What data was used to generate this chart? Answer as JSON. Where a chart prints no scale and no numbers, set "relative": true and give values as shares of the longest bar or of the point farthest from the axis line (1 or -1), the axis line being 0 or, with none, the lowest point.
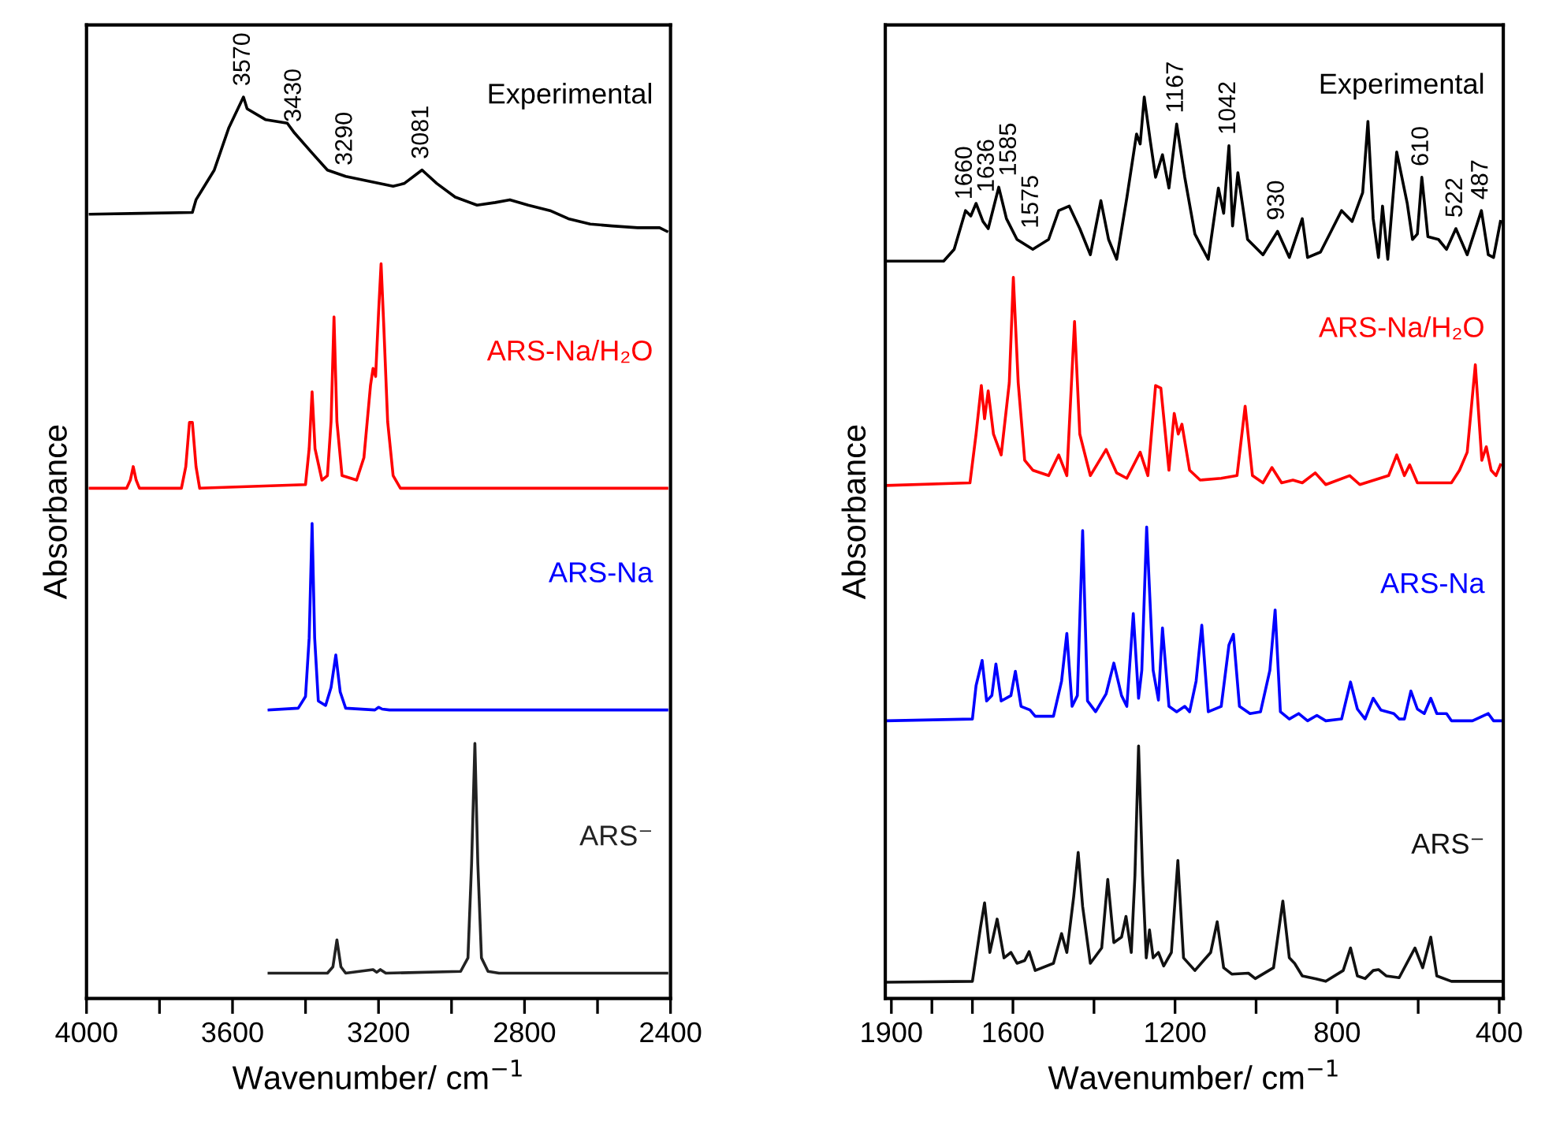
{
  "chart_data": [
    {
      "type": "line",
      "relative": true,
      "xlabel": "Wavenumber/ cm$^{−1}$",
      "ylabel": "Absorbance",
      "xlim": [
        4000,
        2400
      ],
      "xticks": [
        4000,
        {
          "value": 3800,
          "label": null
        },
        3600,
        {
          "value": 3400,
          "label": null
        },
        3200,
        {
          "value": 3000,
          "label": null
        },
        2800,
        {
          "value": 2600,
          "label": null
        },
        2400
      ],
      "tick_labels": "x",
      "grid": false,
      "legend": false,
      "marker": "none",
      "line_style": "solid",
      "annotations": [
        {
          "text": "3570",
          "x": 3570,
          "y": 1.0
        },
        {
          "text": "3430",
          "x": 3430,
          "y": 0.96
        },
        {
          "text": "3290",
          "x": 3290,
          "y": 0.912
        },
        {
          "text": "3081",
          "x": 3081,
          "y": 0.919
        }
      ],
      "series": [
        {
          "name": "Experimental",
          "color": "#000000",
          "x": [
            3990,
            3850,
            3710,
            3700,
            3650,
            3610,
            3570,
            3560,
            3510,
            3450,
            3430,
            3380,
            3340,
            3290,
            3220,
            3160,
            3130,
            3081,
            3070,
            3040,
            2990,
            2930,
            2880,
            2840,
            2790,
            2730,
            2680,
            2620,
            2560,
            2490,
            2430,
            2410
          ],
          "values": [
            0.87,
            0.871,
            0.872,
            0.886,
            0.919,
            0.966,
            1.0,
            0.987,
            0.975,
            0.971,
            0.96,
            0.937,
            0.919,
            0.912,
            0.906,
            0.901,
            0.904,
            0.919,
            0.915,
            0.904,
            0.889,
            0.88,
            0.883,
            0.886,
            0.88,
            0.874,
            0.865,
            0.859,
            0.857,
            0.855,
            0.855,
            0.851
          ]
        },
        {
          "name": "ARS-Na/H₂O",
          "color": "#ff0000",
          "x": [
            3990,
            3890,
            3880,
            3872,
            3864,
            3855,
            3740,
            3728,
            3718,
            3710,
            3700,
            3690,
            3400,
            3390,
            3382,
            3374,
            3355,
            3340,
            3330,
            3322,
            3314,
            3300,
            3260,
            3240,
            3222,
            3215,
            3208,
            3200,
            3193,
            3186,
            3175,
            3160,
            3140,
            2410
          ],
          "values": [
            0.566,
            0.566,
            0.575,
            0.59,
            0.575,
            0.566,
            0.566,
            0.59,
            0.639,
            0.639,
            0.59,
            0.566,
            0.57,
            0.61,
            0.673,
            0.61,
            0.575,
            0.58,
            0.64,
            0.756,
            0.64,
            0.58,
            0.575,
            0.6,
            0.68,
            0.699,
            0.69,
            0.76,
            0.815,
            0.75,
            0.64,
            0.58,
            0.566,
            0.566
          ]
        },
        {
          "name": "ARS-Na",
          "color": "#0000ff",
          "x": [
            3500,
            3420,
            3400,
            3390,
            3382,
            3375,
            3365,
            3345,
            3330,
            3317,
            3305,
            3290,
            3210,
            3200,
            3190,
            3170,
            2410
          ],
          "values": [
            0.32,
            0.322,
            0.335,
            0.4,
            0.527,
            0.4,
            0.33,
            0.325,
            0.345,
            0.381,
            0.34,
            0.322,
            0.32,
            0.323,
            0.321,
            0.32,
            0.32
          ]
        },
        {
          "name": "ARS⁻",
          "color": "#222222",
          "x": [
            3500,
            3340,
            3325,
            3314,
            3303,
            3290,
            3215,
            3205,
            3195,
            3180,
            2975,
            2955,
            2945,
            2936,
            2928,
            2918,
            2900,
            2870,
            2410
          ],
          "values": [
            0.028,
            0.028,
            0.035,
            0.065,
            0.035,
            0.028,
            0.032,
            0.029,
            0.032,
            0.028,
            0.03,
            0.045,
            0.15,
            0.283,
            0.15,
            0.045,
            0.03,
            0.028,
            0.028
          ]
        }
      ]
    },
    {
      "type": "line",
      "relative": true,
      "xlabel": "Wavenumber/ cm$^{−1}$",
      "ylabel": "Absorbance",
      "xlim": [
        1915,
        390
      ],
      "xticks": [
        1900,
        {
          "value": 1800,
          "label": null
        },
        {
          "value": 1700,
          "label": null
        },
        1600,
        {
          "value": 1400,
          "label": null
        },
        1200,
        {
          "value": 1000,
          "label": null
        },
        800,
        {
          "value": 600,
          "label": null
        },
        400
      ],
      "tick_labels": "x",
      "grid": false,
      "legend": false,
      "marker": "none",
      "line_style": "solid",
      "annotations": [
        {
          "text": "1660",
          "x": 1717,
          "y": 0.874
        },
        {
          "text": "1636",
          "x": 1691,
          "y": 0.882
        },
        {
          "text": "1585",
          "x": 1635,
          "y": 0.9
        },
        {
          "text": "1575",
          "x": 1590,
          "y": 0.842
        },
        {
          "text": "1167",
          "x": 1196,
          "y": 0.97
        },
        {
          "text": "1042",
          "x": 1067,
          "y": 0.946
        },
        {
          "text": "930",
          "x": 947,
          "y": 0.851
        },
        {
          "text": "610",
          "x": 591,
          "y": 0.911
        },
        {
          "text": "522",
          "x": 507,
          "y": 0.854
        },
        {
          "text": "487",
          "x": 444,
          "y": 0.874
        }
      ],
      "series": [
        {
          "name": "Experimental",
          "color": "#000000",
          "x": [
            1913,
            1771,
            1745,
            1717,
            1704,
            1691,
            1674,
            1661,
            1635,
            1616,
            1590,
            1551,
            1512,
            1487,
            1461,
            1435,
            1409,
            1383,
            1364,
            1344,
            1319,
            1295,
            1286,
            1276,
            1261,
            1248,
            1231,
            1215,
            1196,
            1176,
            1151,
            1118,
            1093,
            1080,
            1067,
            1058,
            1045,
            1021,
            983,
            947,
            918,
            886,
            873,
            841,
            815,
            789,
            763,
            737,
            724,
            711,
            698,
            688,
            675,
            653,
            627,
            614,
            602,
            591,
            576,
            550,
            530,
            507,
            479,
            444,
            427,
            414,
            397
          ],
          "values": [
            0.818,
            0.818,
            0.831,
            0.874,
            0.868,
            0.882,
            0.862,
            0.854,
            0.9,
            0.865,
            0.842,
            0.831,
            0.842,
            0.874,
            0.879,
            0.854,
            0.825,
            0.885,
            0.842,
            0.82,
            0.888,
            0.959,
            0.948,
            1.0,
            0.951,
            0.911,
            0.936,
            0.899,
            0.97,
            0.911,
            0.848,
            0.82,
            0.899,
            0.871,
            0.946,
            0.857,
            0.916,
            0.842,
            0.825,
            0.851,
            0.822,
            0.865,
            0.822,
            0.828,
            0.851,
            0.874,
            0.862,
            0.894,
            0.973,
            0.865,
            0.822,
            0.879,
            0.82,
            0.939,
            0.882,
            0.842,
            0.848,
            0.911,
            0.845,
            0.842,
            0.831,
            0.854,
            0.825,
            0.874,
            0.825,
            0.822,
            0.862
          ]
        },
        {
          "name": "ARS-Na/H₂O",
          "color": "#ff0000",
          "x": [
            1913,
            1706,
            1691,
            1678,
            1670,
            1661,
            1648,
            1629,
            1609,
            1599,
            1587,
            1571,
            1551,
            1512,
            1487,
            1467,
            1448,
            1435,
            1409,
            1370,
            1344,
            1319,
            1286,
            1267,
            1248,
            1235,
            1215,
            1202,
            1192,
            1183,
            1164,
            1138,
            1086,
            1047,
            1027,
            1009,
            983,
            961,
            937,
            909,
            886,
            854,
            828,
            769,
            744,
            673,
            653,
            634,
            621,
            602,
            518,
            498,
            479,
            459,
            443,
            432,
            420,
            408,
            397
          ],
          "values": [
            0.569,
            0.572,
            0.626,
            0.68,
            0.643,
            0.674,
            0.626,
            0.603,
            0.683,
            0.8,
            0.683,
            0.597,
            0.586,
            0.58,
            0.603,
            0.58,
            0.751,
            0.626,
            0.58,
            0.609,
            0.583,
            0.577,
            0.606,
            0.58,
            0.68,
            0.677,
            0.586,
            0.649,
            0.626,
            0.637,
            0.586,
            0.575,
            0.577,
            0.58,
            0.657,
            0.58,
            0.572,
            0.589,
            0.572,
            0.575,
            0.572,
            0.583,
            0.57,
            0.58,
            0.57,
            0.58,
            0.603,
            0.58,
            0.592,
            0.572,
            0.572,
            0.586,
            0.606,
            0.703,
            0.597,
            0.612,
            0.586,
            0.58,
            0.592
          ]
        },
        {
          "name": "ARS-Na",
          "color": "#0000ff",
          "x": [
            1913,
            1700,
            1691,
            1676,
            1665,
            1652,
            1642,
            1629,
            1605,
            1594,
            1580,
            1558,
            1545,
            1500,
            1480,
            1467,
            1454,
            1441,
            1428,
            1416,
            1396,
            1370,
            1351,
            1332,
            1319,
            1303,
            1290,
            1282,
            1270,
            1254,
            1241,
            1231,
            1215,
            1196,
            1176,
            1164,
            1148,
            1134,
            1118,
            1086,
            1067,
            1056,
            1041,
            1015,
            989,
            966,
            953,
            940,
            918,
            895,
            873,
            850,
            828,
            789,
            767,
            750,
            731,
            711,
            692,
            660,
            647,
            634,
            618,
            602,
            585,
            569,
            554,
            530,
            518,
            466,
            427,
            414,
            397
          ],
          "values": [
            0.308,
            0.31,
            0.347,
            0.375,
            0.33,
            0.336,
            0.371,
            0.33,
            0.336,
            0.363,
            0.324,
            0.32,
            0.313,
            0.313,
            0.352,
            0.405,
            0.324,
            0.336,
            0.519,
            0.33,
            0.318,
            0.338,
            0.372,
            0.336,
            0.324,
            0.427,
            0.333,
            0.364,
            0.523,
            0.364,
            0.331,
            0.411,
            0.324,
            0.318,
            0.324,
            0.318,
            0.352,
            0.414,
            0.318,
            0.324,
            0.392,
            0.404,
            0.324,
            0.316,
            0.318,
            0.364,
            0.431,
            0.318,
            0.31,
            0.316,
            0.308,
            0.314,
            0.308,
            0.31,
            0.351,
            0.321,
            0.31,
            0.333,
            0.32,
            0.316,
            0.31,
            0.31,
            0.341,
            0.321,
            0.316,
            0.333,
            0.316,
            0.316,
            0.308,
            0.308,
            0.316,
            0.308,
            0.308
          ]
        },
        {
          "name": "ARS⁻",
          "color": "#111111",
          "x": [
            1913,
            1700,
            1680,
            1670,
            1657,
            1639,
            1622,
            1605,
            1590,
            1571,
            1560,
            1545,
            1500,
            1480,
            1467,
            1450,
            1439,
            1428,
            1409,
            1381,
            1366,
            1351,
            1332,
            1321,
            1308,
            1299,
            1290,
            1280,
            1271,
            1263,
            1254,
            1241,
            1228,
            1209,
            1193,
            1179,
            1151,
            1112,
            1096,
            1080,
            1060,
            1019,
            1002,
            957,
            934,
            918,
            905,
            886,
            854,
            828,
            785,
            767,
            750,
            731,
            711,
            698,
            679,
            647,
            621,
            608,
            589,
            569,
            554,
            518,
            466,
            397
          ],
          "values": [
            0.018,
            0.019,
            0.079,
            0.106,
            0.051,
            0.088,
            0.045,
            0.051,
            0.039,
            0.042,
            0.052,
            0.031,
            0.039,
            0.072,
            0.051,
            0.113,
            0.162,
            0.102,
            0.039,
            0.056,
            0.132,
            0.062,
            0.068,
            0.091,
            0.051,
            0.136,
            0.28,
            0.136,
            0.045,
            0.076,
            0.045,
            0.051,
            0.036,
            0.051,
            0.153,
            0.045,
            0.031,
            0.051,
            0.085,
            0.034,
            0.027,
            0.028,
            0.022,
            0.034,
            0.108,
            0.045,
            0.039,
            0.025,
            0.022,
            0.019,
            0.031,
            0.056,
            0.025,
            0.022,
            0.031,
            0.032,
            0.025,
            0.023,
            0.045,
            0.056,
            0.034,
            0.068,
            0.025,
            0.019,
            0.019,
            0.019
          ]
        }
      ]
    }
  ]
}
